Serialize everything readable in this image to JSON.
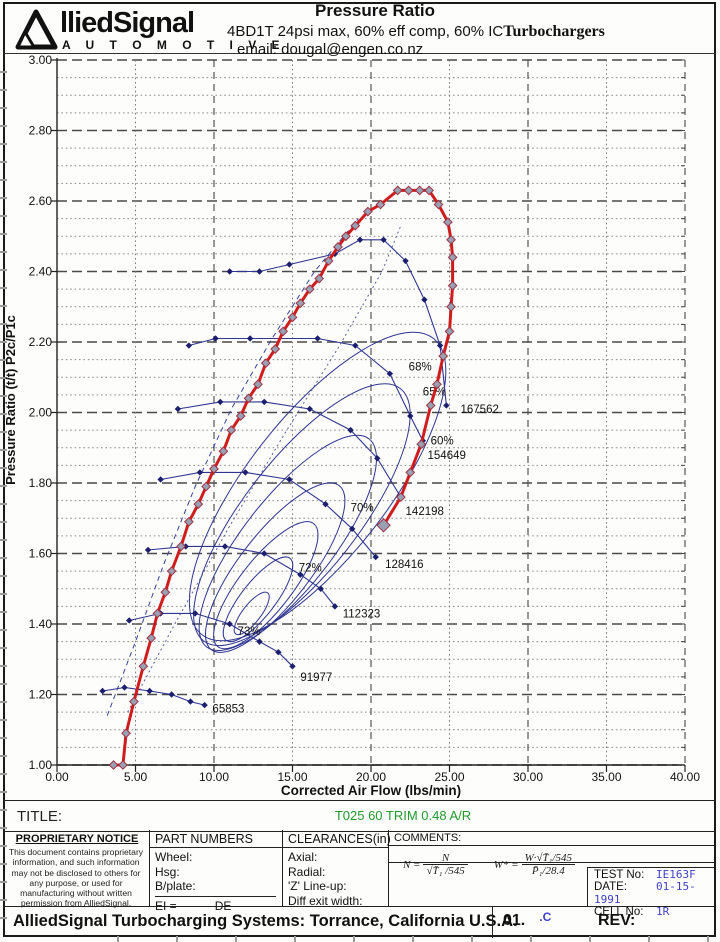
{
  "header": {
    "brand": "lliedSignal",
    "brand_sub": "A U T O M O T I V E",
    "title": "Pressure Ratio",
    "subtitle": "4BD1T 24psi max, 60% eff comp, 60% IC",
    "brand_right": "Turbochargers",
    "email_line": "email:  dougal@engen.co.nz"
  },
  "chart_data": {
    "type": "line",
    "title": "Pressure Ratio",
    "xlabel": "Corrected Air Flow (lbs/min)",
    "ylabel": "Pressure Ratio (t/t) P2c/P1c",
    "xlim": [
      0,
      40
    ],
    "ylim": [
      1.0,
      3.0
    ],
    "x_tick_labels": [
      "0.00",
      "5.00",
      "10.00",
      "15.00",
      "20.00",
      "25.00",
      "30.00",
      "35.00",
      "40.00"
    ],
    "y_tick_labels": [
      "3.00",
      "2.80",
      "2.60",
      "2.40",
      "2.20",
      "2.00",
      "1.80",
      "1.60",
      "1.40",
      "1.20",
      "1.00"
    ],
    "grid": "on",
    "colors": {
      "map_line": "#2f3590",
      "marker": "#1b1f6e",
      "op_line": "#cf1d1d",
      "op_marker_fill": "#98a0b4",
      "grid_major": "#4a4a4a",
      "grid_minor": "#8a8a8a"
    },
    "speed_lines": [
      {
        "label": "65853",
        "label_at": [
          9.9,
          1.16
        ],
        "points": [
          [
            2.9,
            1.21
          ],
          [
            4.3,
            1.22
          ],
          [
            5.9,
            1.21
          ],
          [
            7.3,
            1.2
          ],
          [
            8.5,
            1.18
          ],
          [
            9.4,
            1.17
          ]
        ]
      },
      {
        "label": "91977",
        "label_at": [
          15.5,
          1.25
        ],
        "points": [
          [
            4.6,
            1.41
          ],
          [
            6.6,
            1.43
          ],
          [
            8.8,
            1.43
          ],
          [
            11.0,
            1.4
          ],
          [
            12.9,
            1.35
          ],
          [
            14.1,
            1.32
          ],
          [
            15.0,
            1.28
          ]
        ]
      },
      {
        "label": "112323",
        "label_at": [
          18.2,
          1.43
        ],
        "points": [
          [
            5.8,
            1.61
          ],
          [
            8.2,
            1.62
          ],
          [
            10.7,
            1.62
          ],
          [
            13.2,
            1.6
          ],
          [
            15.5,
            1.54
          ],
          [
            16.8,
            1.5
          ],
          [
            17.7,
            1.45
          ]
        ]
      },
      {
        "label": "128416",
        "label_at": [
          20.9,
          1.57
        ],
        "points": [
          [
            6.6,
            1.81
          ],
          [
            9.1,
            1.83
          ],
          [
            12.0,
            1.83
          ],
          [
            14.8,
            1.81
          ],
          [
            17.1,
            1.74
          ],
          [
            18.8,
            1.67
          ],
          [
            20.3,
            1.59
          ]
        ]
      },
      {
        "label": "142198",
        "label_at": [
          22.2,
          1.72
        ],
        "points": [
          [
            7.7,
            2.01
          ],
          [
            10.4,
            2.03
          ],
          [
            13.2,
            2.03
          ],
          [
            16.1,
            2.01
          ],
          [
            18.7,
            1.95
          ],
          [
            20.4,
            1.87
          ],
          [
            21.9,
            1.76
          ]
        ]
      },
      {
        "label": "154649",
        "label_at": [
          23.6,
          1.88
        ],
        "points": [
          [
            8.4,
            2.19
          ],
          [
            10.1,
            2.21
          ],
          [
            12.3,
            2.21
          ],
          [
            16.6,
            2.21
          ],
          [
            19.0,
            2.19
          ],
          [
            21.2,
            2.11
          ],
          [
            22.5,
            1.99
          ],
          [
            23.3,
            1.92
          ]
        ]
      },
      {
        "label": "167562",
        "label_at": [
          25.7,
          2.01
        ],
        "points": [
          [
            11.0,
            2.4
          ],
          [
            12.9,
            2.4
          ],
          [
            14.8,
            2.42
          ],
          [
            17.7,
            2.45
          ],
          [
            19.3,
            2.49
          ],
          [
            20.8,
            2.49
          ],
          [
            22.2,
            2.43
          ],
          [
            23.4,
            2.32
          ],
          [
            24.4,
            2.19
          ],
          [
            24.8,
            2.02
          ]
        ]
      }
    ],
    "efficiency_labels": [
      {
        "text": "68%",
        "at": [
          22.4,
          2.13
        ]
      },
      {
        "text": "65%",
        "at": [
          23.3,
          2.06
        ]
      },
      {
        "text": "60%",
        "at": [
          23.8,
          1.92
        ]
      },
      {
        "text": "70%",
        "at": [
          18.7,
          1.73
        ]
      },
      {
        "text": "72%",
        "at": [
          15.4,
          1.56
        ]
      },
      {
        "text": "73%",
        "at": [
          11.5,
          1.38
        ]
      }
    ],
    "efficiency_contours": [
      {
        "center": [
          12.4,
          1.43
        ],
        "rx": 26,
        "ry": 9,
        "angle": -52
      },
      {
        "center": [
          12.8,
          1.47
        ],
        "rx": 52,
        "ry": 17,
        "angle": -52
      },
      {
        "center": [
          13.3,
          1.51
        ],
        "rx": 78,
        "ry": 26,
        "angle": -52
      },
      {
        "center": [
          13.9,
          1.56
        ],
        "rx": 104,
        "ry": 35,
        "angle": -52
      },
      {
        "center": [
          14.7,
          1.63
        ],
        "rx": 132,
        "ry": 45,
        "angle": -52
      },
      {
        "center": [
          15.6,
          1.71
        ],
        "rx": 160,
        "ry": 57,
        "angle": -52
      },
      {
        "center": [
          16.6,
          1.79
        ],
        "rx": 188,
        "ry": 70,
        "angle": -52
      }
    ],
    "surge_line": [
      [
        3.2,
        1.14
      ],
      [
        5.0,
        1.35
      ],
      [
        6.8,
        1.57
      ],
      [
        8.8,
        1.79
      ],
      [
        11.1,
        2.01
      ],
      [
        13.7,
        2.21
      ],
      [
        16.4,
        2.4
      ],
      [
        19.2,
        2.55
      ]
    ],
    "locus_line": [
      [
        4.5,
        1.15
      ],
      [
        7.5,
        1.4
      ],
      [
        10.9,
        1.67
      ],
      [
        14.5,
        1.94
      ],
      [
        18.0,
        2.19
      ],
      [
        20.7,
        2.4
      ],
      [
        21.9,
        2.53
      ]
    ],
    "op_line": {
      "points": [
        [
          3.6,
          1.0
        ],
        [
          4.2,
          1.0
        ],
        [
          4.4,
          1.09
        ],
        [
          4.9,
          1.18
        ],
        [
          5.5,
          1.28
        ],
        [
          6.0,
          1.36
        ],
        [
          6.4,
          1.43
        ],
        [
          6.9,
          1.49
        ],
        [
          7.3,
          1.55
        ],
        [
          7.9,
          1.62
        ],
        [
          8.4,
          1.69
        ],
        [
          9.0,
          1.74
        ],
        [
          9.5,
          1.79
        ],
        [
          10.0,
          1.84
        ],
        [
          10.6,
          1.89
        ],
        [
          11.1,
          1.95
        ],
        [
          11.7,
          1.99
        ],
        [
          12.2,
          2.04
        ],
        [
          12.8,
          2.08
        ],
        [
          13.3,
          2.14
        ],
        [
          13.9,
          2.18
        ],
        [
          14.4,
          2.23
        ],
        [
          15.0,
          2.27
        ],
        [
          15.5,
          2.31
        ],
        [
          16.1,
          2.35
        ],
        [
          16.7,
          2.38
        ],
        [
          17.3,
          2.43
        ],
        [
          17.9,
          2.47
        ],
        [
          18.4,
          2.5
        ],
        [
          19.0,
          2.53
        ],
        [
          19.8,
          2.57
        ],
        [
          20.6,
          2.59
        ],
        [
          21.7,
          2.63
        ],
        [
          22.4,
          2.63
        ],
        [
          23.1,
          2.63
        ],
        [
          23.7,
          2.63
        ],
        [
          24.3,
          2.59
        ],
        [
          24.9,
          2.54
        ],
        [
          25.1,
          2.49
        ],
        [
          25.2,
          2.44
        ],
        [
          25.2,
          2.36
        ],
        [
          25.1,
          2.3
        ],
        [
          25.0,
          2.23
        ],
        [
          24.6,
          2.16
        ],
        [
          24.2,
          2.08
        ],
        [
          23.8,
          2.02
        ],
        [
          23.2,
          1.91
        ],
        [
          22.5,
          1.83
        ],
        [
          21.9,
          1.76
        ],
        [
          20.8,
          1.68
        ]
      ]
    }
  },
  "title_block": {
    "label": "TITLE:",
    "value": "T025 60 TRIM  0.48 A/R"
  },
  "table": {
    "notice": {
      "title": "PROPRIETARY NOTICE",
      "body": "This document contains proprietary information, and such information may not be disclosed to others for any purpose, or used for manufacturing without written permission from AlliedSignal."
    },
    "part_numbers": {
      "header": "PART NUMBERS",
      "rows": [
        "Wheel:",
        "Hsg:",
        "B/plate:"
      ],
      "ei_label": "EI =",
      "ei_value": "DE"
    },
    "clearances": {
      "header": "CLEARANCES(in)",
      "rows": [
        "Axial:",
        "Radial:",
        "'Z' Line-up:",
        "Diff exit width:"
      ]
    },
    "comments": {
      "header": "COMMENTS:"
    },
    "formulas": {
      "f1_lhs": "N =",
      "f1_num": "N",
      "f1_den": "√T̄₁ /545",
      "f2_lhs": "W* =",
      "f2_num": "W·√T̄₁/545",
      "f2_den": "P̄₁/28.4"
    },
    "test": {
      "test_label": "TEST No:",
      "test_value": "IE163F",
      "date_label": "DATE:",
      "date_value": "01-15-1991",
      "cell_label": "CELL No:",
      "cell_value": "1R"
    }
  },
  "footer": {
    "brand_line": "AlliedSignal Turbocharging Systems: Torrance, California U.S.A.",
    "code_black": "01.",
    "code_blue": ".C",
    "rev_label": "REV:"
  }
}
